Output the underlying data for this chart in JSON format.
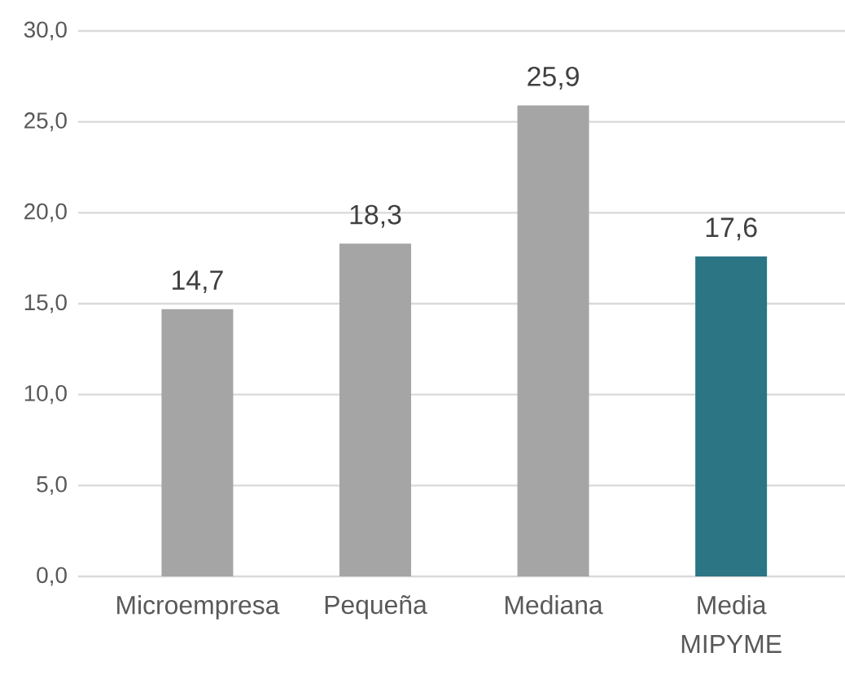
{
  "chart_data": {
    "type": "bar",
    "categories": [
      "Microempresa",
      "Pequeña",
      "Mediana",
      "Media MIPYME"
    ],
    "values": [
      14.7,
      18.3,
      25.9,
      17.6
    ],
    "colors": [
      "#a5a5a5",
      "#a5a5a5",
      "#a5a5a5",
      "#2b7585"
    ],
    "value_labels": [
      "14,7",
      "18,3",
      "25,9",
      "17,6"
    ],
    "ylim": [
      0,
      30
    ],
    "yticks": [
      {
        "value": 0,
        "label": "0,0"
      },
      {
        "value": 5,
        "label": "5,0"
      },
      {
        "value": 10,
        "label": "10,0"
      },
      {
        "value": 15,
        "label": "15,0"
      },
      {
        "value": 20,
        "label": "20,0"
      },
      {
        "value": 25,
        "label": "25,0"
      },
      {
        "value": 30,
        "label": "30,0"
      }
    ],
    "grid": "y"
  }
}
